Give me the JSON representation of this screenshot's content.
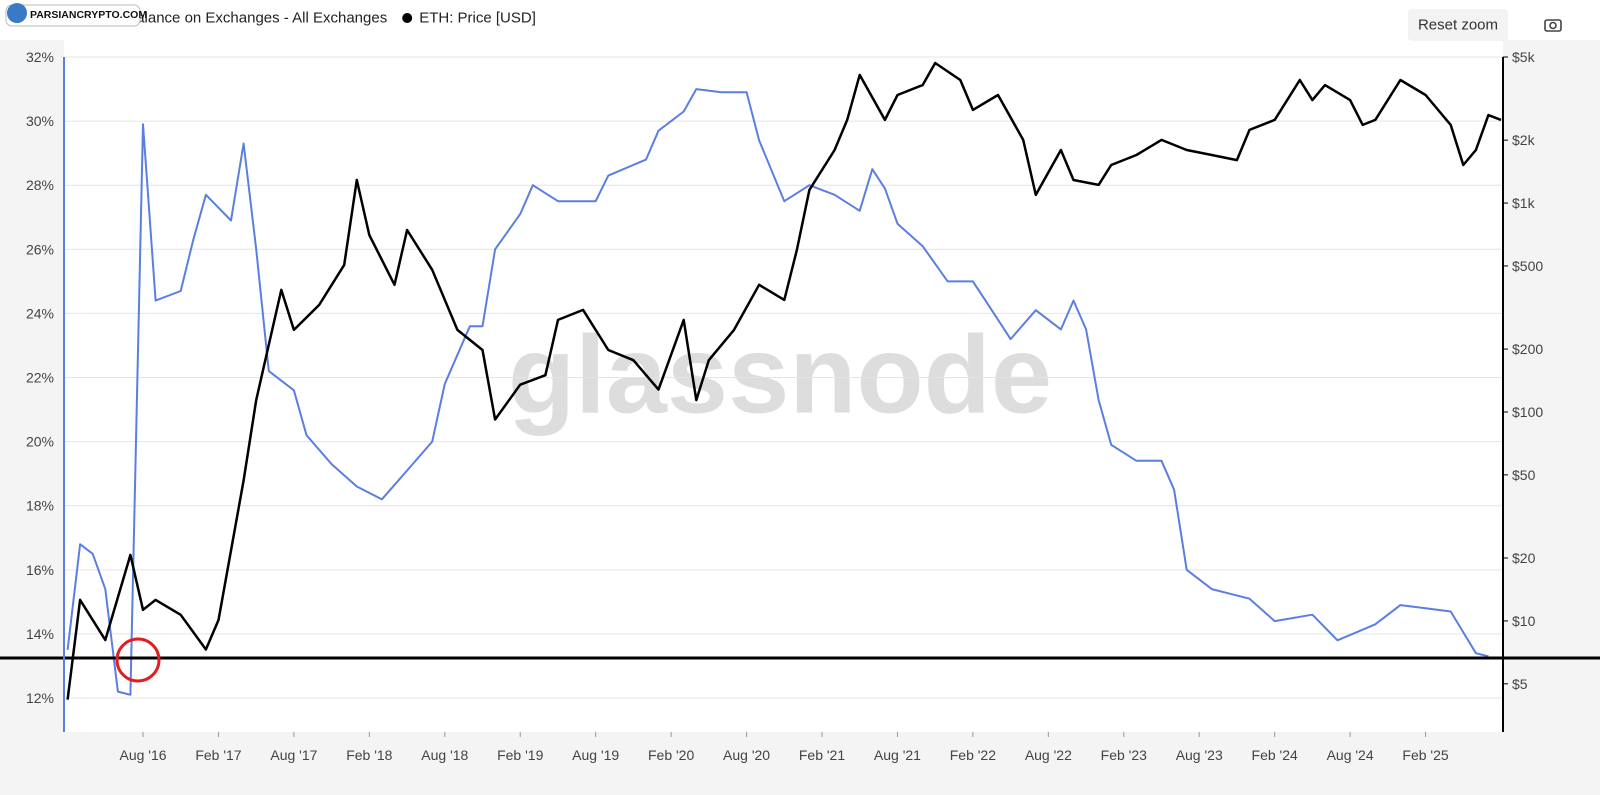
{
  "chart_data": {
    "type": "line",
    "series": [
      {
        "name": "ETH: Percent Balance on Exchanges - All Exchanges",
        "color": "#5b7fe0",
        "axis": "y",
        "x": [
          "2016-02",
          "2016-03",
          "2016-04",
          "2016-05",
          "2016-06",
          "2016-07",
          "2016-08",
          "2016-09",
          "2016-11",
          "2016-12",
          "2017-01",
          "2017-03",
          "2017-04",
          "2017-05",
          "2017-06",
          "2017-08",
          "2017-09",
          "2017-11",
          "2018-01",
          "2018-03",
          "2018-05",
          "2018-07",
          "2018-08",
          "2018-10",
          "2018-11",
          "2018-12",
          "2019-02",
          "2019-03",
          "2019-05",
          "2019-08",
          "2019-09",
          "2019-12",
          "2020-01",
          "2020-03",
          "2020-04",
          "2020-06",
          "2020-08",
          "2020-09",
          "2020-11",
          "2021-01",
          "2021-03",
          "2021-05",
          "2021-06",
          "2021-07",
          "2021-08",
          "2021-10",
          "2021-12",
          "2022-02",
          "2022-03",
          "2022-05",
          "2022-07",
          "2022-09",
          "2022-10",
          "2022-11",
          "2022-12",
          "2023-01",
          "2023-03",
          "2023-05",
          "2023-06",
          "2023-07",
          "2023-09",
          "2023-12",
          "2024-02",
          "2024-05",
          "2024-07",
          "2024-10",
          "2024-12",
          "2025-02",
          "2025-04",
          "2025-06",
          "2025-07"
        ],
        "values": [
          13.5,
          16.8,
          16.5,
          15.4,
          12.2,
          12.1,
          29.9,
          24.4,
          24.7,
          26.3,
          27.7,
          26.9,
          29.3,
          26.0,
          22.2,
          21.6,
          20.2,
          19.3,
          18.6,
          18.2,
          19.1,
          20.0,
          21.8,
          23.6,
          23.6,
          26.0,
          27.1,
          28.0,
          27.5,
          27.5,
          28.3,
          28.8,
          29.7,
          30.3,
          31.0,
          30.9,
          30.9,
          29.4,
          27.5,
          28.0,
          27.7,
          27.2,
          28.5,
          27.9,
          26.8,
          26.1,
          25.0,
          25.0,
          24.4,
          23.2,
          24.1,
          23.5,
          24.4,
          23.5,
          21.3,
          19.9,
          19.4,
          19.4,
          18.5,
          16.0,
          15.4,
          15.1,
          14.4,
          14.6,
          13.8,
          14.3,
          14.9,
          14.8,
          14.7,
          13.4,
          13.3
        ]
      },
      {
        "name": "ETH: Price [USD]",
        "color": "#000000",
        "axis": "y2",
        "x": [
          "2016-02",
          "2016-03",
          "2016-05",
          "2016-07",
          "2016-08",
          "2016-09",
          "2016-11",
          "2017-01",
          "2017-02",
          "2017-04",
          "2017-05",
          "2017-07",
          "2017-08",
          "2017-10",
          "2017-12",
          "2018-01",
          "2018-02",
          "2018-04",
          "2018-05",
          "2018-07",
          "2018-09",
          "2018-11",
          "2018-12",
          "2019-02",
          "2019-04",
          "2019-05",
          "2019-07",
          "2019-09",
          "2019-11",
          "2020-01",
          "2020-03",
          "2020-04",
          "2020-05",
          "2020-07",
          "2020-09",
          "2020-11",
          "2020-12",
          "2021-01",
          "2021-03",
          "2021-04",
          "2021-05",
          "2021-07",
          "2021-08",
          "2021-10",
          "2021-11",
          "2022-01",
          "2022-02",
          "2022-04",
          "2022-06",
          "2022-07",
          "2022-09",
          "2022-10",
          "2022-12",
          "2023-01",
          "2023-03",
          "2023-05",
          "2023-07",
          "2023-09",
          "2023-11",
          "2023-12",
          "2024-02",
          "2024-04",
          "2024-05",
          "2024-06",
          "2024-08",
          "2024-09",
          "2024-10",
          "2024-12",
          "2025-02",
          "2025-04",
          "2025-05",
          "2025-06",
          "2025-07",
          "2025-08"
        ],
        "values": [
          4.2,
          12.6,
          8.1,
          20.7,
          11.3,
          12.6,
          10.7,
          7.3,
          10.1,
          47,
          114,
          384,
          247,
          325,
          506,
          1289,
          703,
          406,
          743,
          479,
          247,
          198,
          92,
          135,
          150,
          276,
          308,
          198,
          177,
          128,
          276,
          114,
          177,
          247,
          406,
          344,
          597,
          1156,
          1795,
          2500,
          4105,
          2500,
          3290,
          3670,
          4680,
          3880,
          2790,
          3290,
          2005,
          1094,
          1795,
          1289,
          1221,
          1521,
          1698,
          2005,
          1795,
          1698,
          1606,
          2240,
          2500,
          3880,
          3110,
          3670,
          3110,
          2365,
          2500,
          3880,
          3290,
          2365,
          1521,
          1795,
          2636,
          2500
        ]
      }
    ],
    "xlim": [
      "2016-01",
      "2025-08"
    ],
    "xticks": [
      {
        "value": "2016-08",
        "label": "Aug '16"
      },
      {
        "value": "2017-02",
        "label": "Feb '17"
      },
      {
        "value": "2017-08",
        "label": "Aug '17"
      },
      {
        "value": "2018-02",
        "label": "Feb '18"
      },
      {
        "value": "2018-08",
        "label": "Aug '18"
      },
      {
        "value": "2019-02",
        "label": "Feb '19"
      },
      {
        "value": "2019-08",
        "label": "Aug '19"
      },
      {
        "value": "2020-02",
        "label": "Feb '20"
      },
      {
        "value": "2020-08",
        "label": "Aug '20"
      },
      {
        "value": "2021-02",
        "label": "Feb '21"
      },
      {
        "value": "2021-08",
        "label": "Aug '21"
      },
      {
        "value": "2022-02",
        "label": "Feb '22"
      },
      {
        "value": "2022-08",
        "label": "Aug '22"
      },
      {
        "value": "2023-02",
        "label": "Feb '23"
      },
      {
        "value": "2023-08",
        "label": "Aug '23"
      },
      {
        "value": "2024-02",
        "label": "Feb '24"
      },
      {
        "value": "2024-08",
        "label": "Aug '24"
      },
      {
        "value": "2025-02",
        "label": "Feb '25"
      }
    ],
    "ylim": [
      10.94,
      32
    ],
    "yticks": [
      {
        "value": 12,
        "label": "12%"
      },
      {
        "value": 14,
        "label": "14%"
      },
      {
        "value": 16,
        "label": "16%"
      },
      {
        "value": 18,
        "label": "18%"
      },
      {
        "value": 20,
        "label": "20%"
      },
      {
        "value": 22,
        "label": "22%"
      },
      {
        "value": 24,
        "label": "24%"
      },
      {
        "value": 26,
        "label": "26%"
      },
      {
        "value": 28,
        "label": "28%"
      },
      {
        "value": 30,
        "label": "30%"
      },
      {
        "value": 32,
        "label": "32%"
      }
    ],
    "y2lim": [
      2.94,
      5000
    ],
    "y2_log": true,
    "y2ticks": [
      {
        "value": 5,
        "label": "$5"
      },
      {
        "value": 10,
        "label": "$10"
      },
      {
        "value": 20,
        "label": "$20"
      },
      {
        "value": 50,
        "label": "$50"
      },
      {
        "value": 100,
        "label": "$100"
      },
      {
        "value": 200,
        "label": "$200"
      },
      {
        "value": 500,
        "label": "$500"
      },
      {
        "value": 1000,
        "label": "$1k"
      },
      {
        "value": 2000,
        "label": "$2k"
      },
      {
        "value": 5000,
        "label": "$5k"
      }
    ],
    "grid": true
  },
  "ui": {
    "reset_zoom": "Reset zoom",
    "watermark": "glassnode",
    "logo_text": "PARSIANCRYPTO.COM"
  }
}
